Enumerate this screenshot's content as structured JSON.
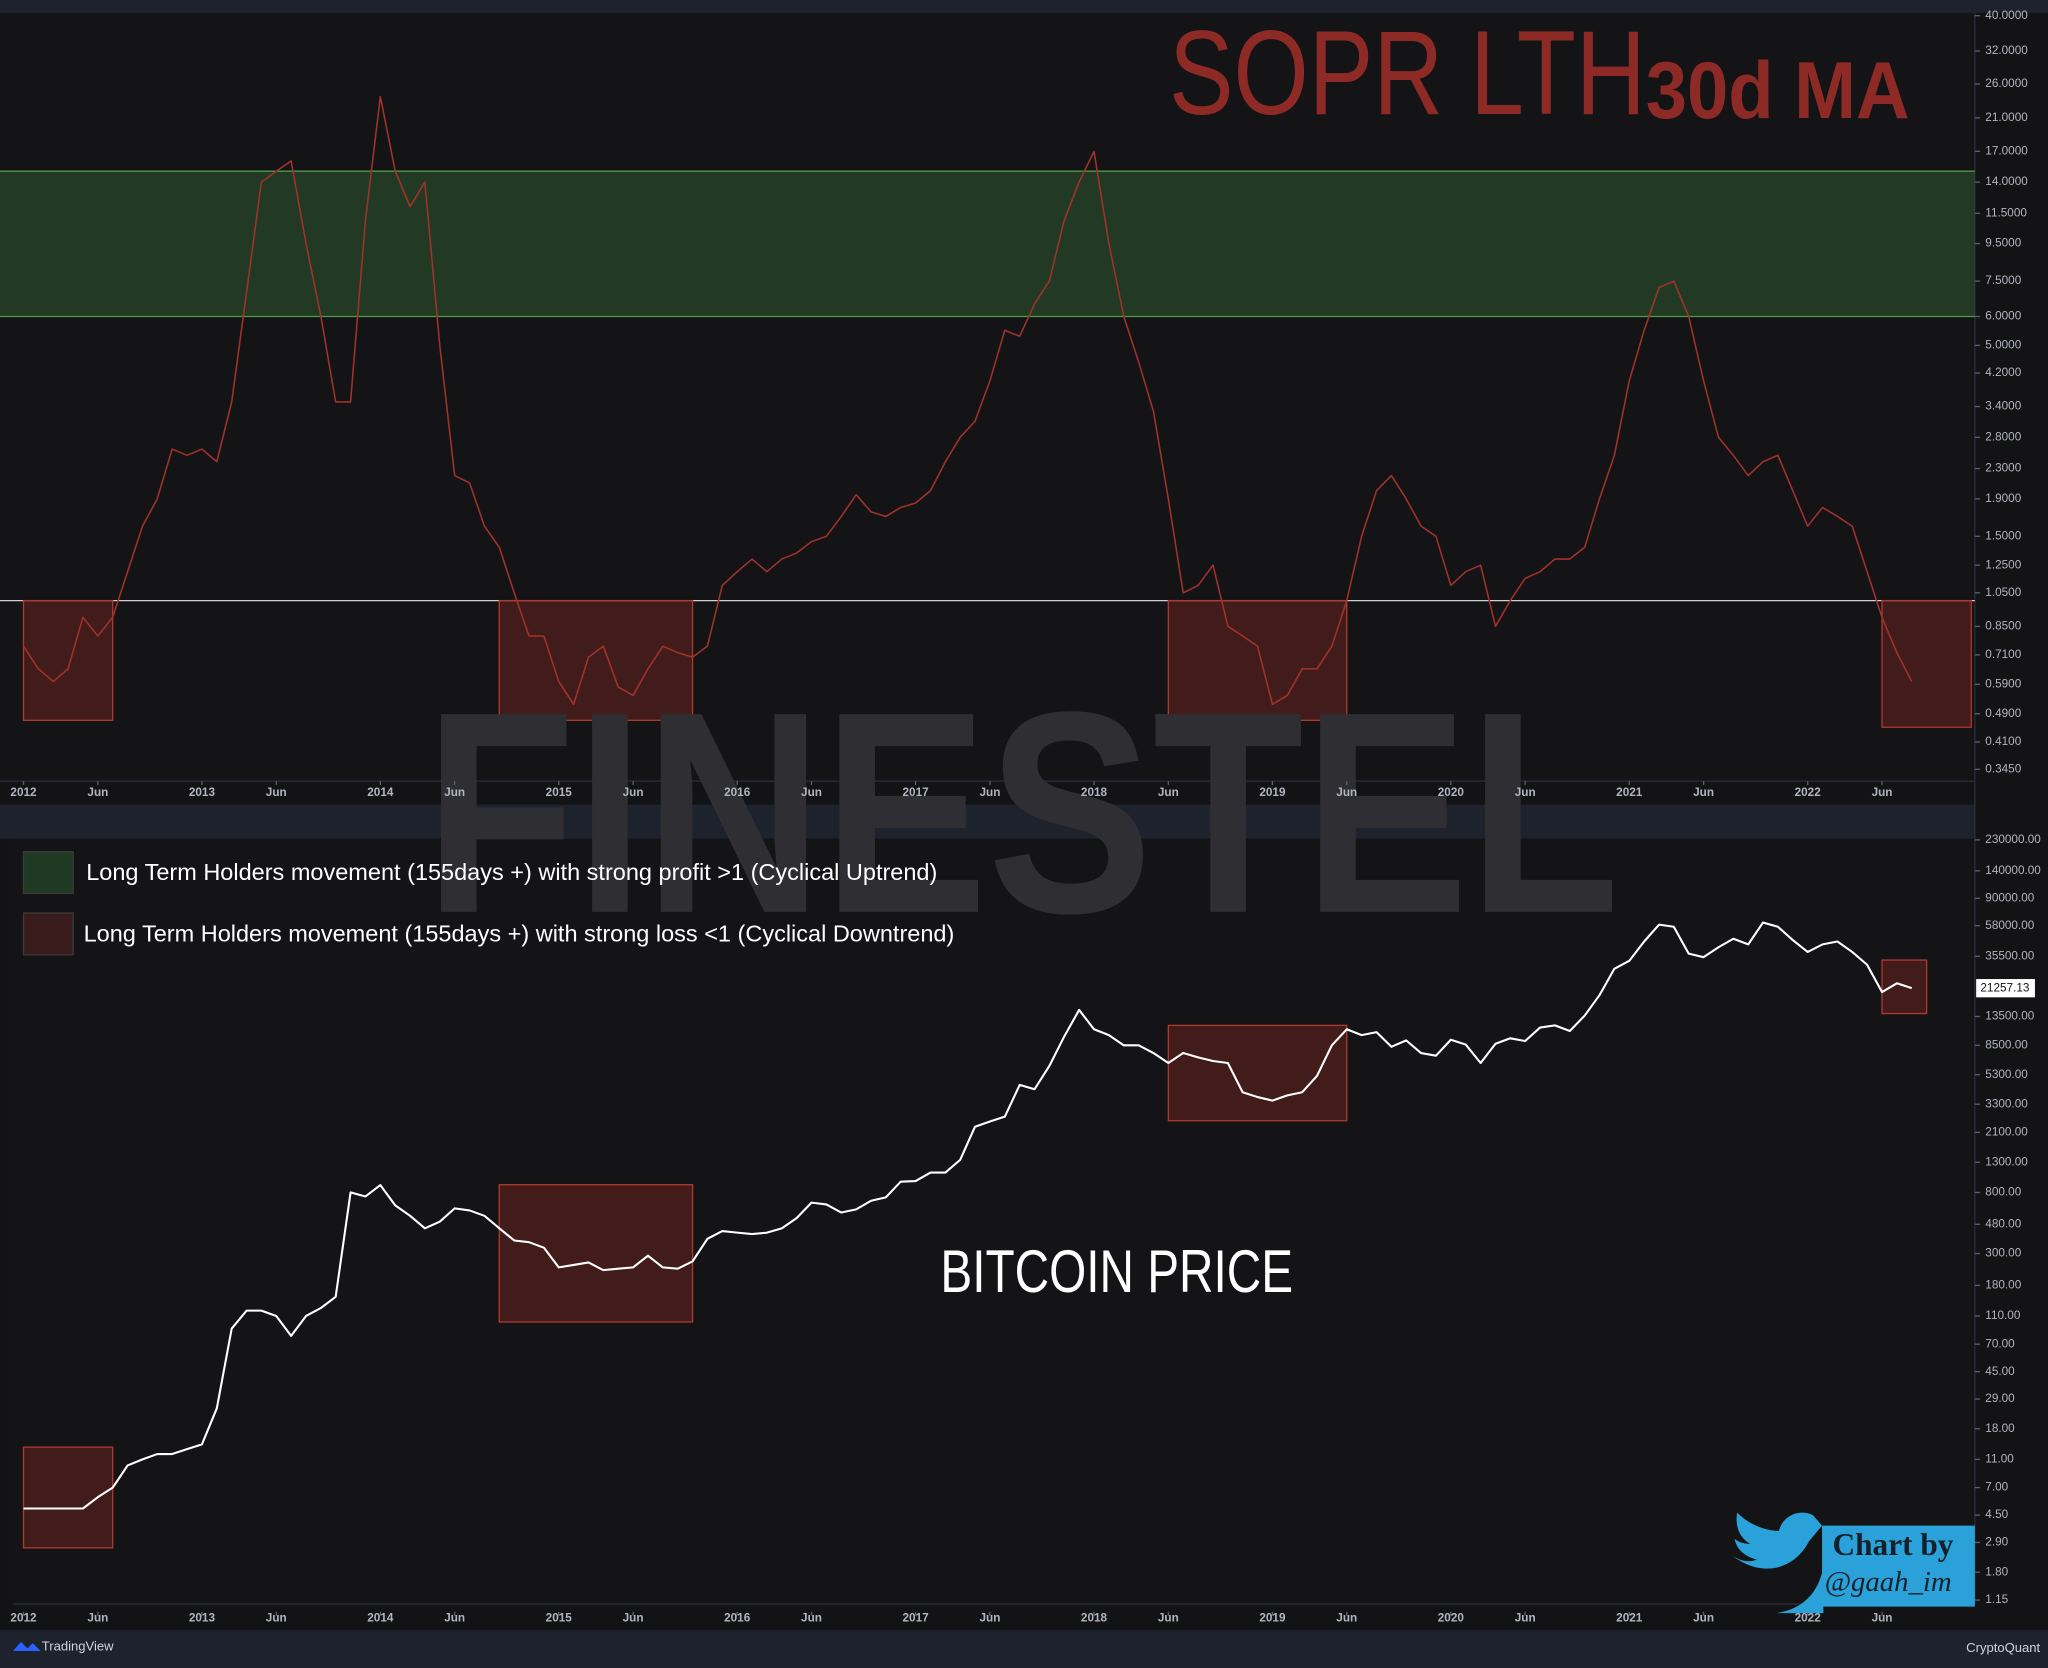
{
  "chart_data": [
    {
      "type": "line",
      "title": "SOPR LTH",
      "subtitle": "30d MA",
      "color": "#a0322a",
      "log": true,
      "x": [
        "2012-01",
        "2012-02",
        "2012-03",
        "2012-04",
        "2012-05",
        "2012-06",
        "2012-07",
        "2012-08",
        "2012-09",
        "2012-10",
        "2012-11",
        "2012-12",
        "2013-01",
        "2013-02",
        "2013-03",
        "2013-04",
        "2013-05",
        "2013-06",
        "2013-07",
        "2013-08",
        "2013-09",
        "2013-10",
        "2013-11",
        "2013-12",
        "2014-01",
        "2014-02",
        "2014-03",
        "2014-04",
        "2014-05",
        "2014-06",
        "2014-07",
        "2014-08",
        "2014-09",
        "2014-10",
        "2014-11",
        "2014-12",
        "2015-01",
        "2015-02",
        "2015-03",
        "2015-04",
        "2015-05",
        "2015-06",
        "2015-07",
        "2015-08",
        "2015-09",
        "2015-10",
        "2015-11",
        "2015-12",
        "2016-01",
        "2016-02",
        "2016-03",
        "2016-04",
        "2016-05",
        "2016-06",
        "2016-07",
        "2016-08",
        "2016-09",
        "2016-10",
        "2016-11",
        "2016-12",
        "2017-01",
        "2017-02",
        "2017-03",
        "2017-04",
        "2017-05",
        "2017-06",
        "2017-07",
        "2017-08",
        "2017-09",
        "2017-10",
        "2017-11",
        "2017-12",
        "2018-01",
        "2018-02",
        "2018-03",
        "2018-04",
        "2018-05",
        "2018-06",
        "2018-07",
        "2018-08",
        "2018-09",
        "2018-10",
        "2018-11",
        "2018-12",
        "2019-01",
        "2019-02",
        "2019-03",
        "2019-04",
        "2019-05",
        "2019-06",
        "2019-07",
        "2019-08",
        "2019-09",
        "2019-10",
        "2019-11",
        "2019-12",
        "2020-01",
        "2020-02",
        "2020-03",
        "2020-04",
        "2020-05",
        "2020-06",
        "2020-07",
        "2020-08",
        "2020-09",
        "2020-10",
        "2020-11",
        "2020-12",
        "2021-01",
        "2021-02",
        "2021-03",
        "2021-04",
        "2021-05",
        "2021-06",
        "2021-07",
        "2021-08",
        "2021-09",
        "2021-10",
        "2021-11",
        "2021-12",
        "2022-01",
        "2022-02",
        "2022-03",
        "2022-04",
        "2022-05",
        "2022-06",
        "2022-07",
        "2022-08"
      ],
      "values": [
        0.75,
        0.65,
        0.6,
        0.65,
        0.9,
        0.8,
        0.9,
        1.2,
        1.6,
        1.9,
        2.6,
        2.5,
        2.6,
        2.4,
        3.5,
        7,
        14,
        15,
        16,
        9.5,
        6,
        3.5,
        3.5,
        11,
        24,
        15,
        12,
        14,
        5,
        2.2,
        2.1,
        1.6,
        1.4,
        1.05,
        0.8,
        0.8,
        0.6,
        0.52,
        0.7,
        0.75,
        0.58,
        0.55,
        0.65,
        0.75,
        0.72,
        0.7,
        0.75,
        1.1,
        1.2,
        1.3,
        1.2,
        1.3,
        1.35,
        1.45,
        1.5,
        1.7,
        1.95,
        1.75,
        1.7,
        1.8,
        1.85,
        2.0,
        2.4,
        2.8,
        3.1,
        4.0,
        5.5,
        5.3,
        6.5,
        7.5,
        11,
        14,
        17,
        9.5,
        6,
        4.5,
        3.3,
        1.9,
        1.05,
        1.1,
        1.25,
        0.85,
        0.8,
        0.75,
        0.52,
        0.55,
        0.65,
        0.65,
        0.75,
        1.0,
        1.5,
        2.0,
        2.2,
        1.9,
        1.6,
        1.5,
        1.1,
        1.2,
        1.25,
        0.85,
        1.0,
        1.15,
        1.2,
        1.3,
        1.3,
        1.4,
        1.9,
        2.5,
        4.0,
        5.5,
        7.2,
        7.5,
        6,
        4,
        2.8,
        2.5,
        2.2,
        2.4,
        2.5,
        2.0,
        1.6,
        1.8,
        1.7,
        1.6,
        1.2,
        0.9,
        0.72,
        0.6
      ],
      "ylim": [
        0.345,
        40
      ],
      "yticks": [
        {
          "value": 0.345,
          "label": "0.3450"
        },
        {
          "value": 0.41,
          "label": "0.4100"
        },
        {
          "value": 0.49,
          "label": "0.4900"
        },
        {
          "value": 0.59,
          "label": "0.5900"
        },
        {
          "value": 0.71,
          "label": "0.7100"
        },
        {
          "value": 0.85,
          "label": "0.8500"
        },
        {
          "value": 1.05,
          "label": "1.0500"
        },
        {
          "value": 1.25,
          "label": "1.2500"
        },
        {
          "value": 1.5,
          "label": "1.5000"
        },
        {
          "value": 1.9,
          "label": "1.9000"
        },
        {
          "value": 2.3,
          "label": "2.3000"
        },
        {
          "value": 2.8,
          "label": "2.8000"
        },
        {
          "value": 3.4,
          "label": "3.4000"
        },
        {
          "value": 4.2,
          "label": "4.2000"
        },
        {
          "value": 5,
          "label": "5.0000"
        },
        {
          "value": 6,
          "label": "6.0000"
        },
        {
          "value": 7.5,
          "label": "7.5000"
        },
        {
          "value": 9.5,
          "label": "9.5000"
        },
        {
          "value": 11.5,
          "label": "11.5000"
        },
        {
          "value": 14,
          "label": "14.0000"
        },
        {
          "value": 17,
          "label": "17.0000"
        },
        {
          "value": 21,
          "label": "21.0000"
        },
        {
          "value": 26,
          "label": "26.0000"
        },
        {
          "value": 32,
          "label": "32.0000"
        },
        {
          "value": 40,
          "label": "40.0000"
        }
      ],
      "xticks": [
        {
          "value": "2012-01",
          "label": "2012"
        },
        {
          "value": "2012-06",
          "label": "Jun"
        },
        {
          "value": "2013-01",
          "label": "2013"
        },
        {
          "value": "2013-06",
          "label": "Jun"
        },
        {
          "value": "2014-01",
          "label": "2014"
        },
        {
          "value": "2014-06",
          "label": "Jun"
        },
        {
          "value": "2015-01",
          "label": "2015"
        },
        {
          "value": "2015-06",
          "label": "Jun"
        },
        {
          "value": "2016-01",
          "label": "2016"
        },
        {
          "value": "2016-06",
          "label": "Jun"
        },
        {
          "value": "2017-01",
          "label": "2017"
        },
        {
          "value": "2017-06",
          "label": "Jun"
        },
        {
          "value": "2018-01",
          "label": "2018"
        },
        {
          "value": "2018-06",
          "label": "Jun"
        },
        {
          "value": "2019-01",
          "label": "2019"
        },
        {
          "value": "2019-06",
          "label": "Jun"
        },
        {
          "value": "2020-01",
          "label": "2020"
        },
        {
          "value": "2020-06",
          "label": "Jun"
        },
        {
          "value": "2021-01",
          "label": "2021"
        },
        {
          "value": "2021-06",
          "label": "Jun"
        },
        {
          "value": "2022-01",
          "label": "2022"
        },
        {
          "value": "2022-06",
          "label": "Jun"
        }
      ],
      "band": {
        "y": [
          6,
          15
        ],
        "color": "#2d5a2d"
      },
      "reference_line": 1.0,
      "zones": [
        {
          "x": [
            "2012-01",
            "2012-07"
          ],
          "y": [
            0.47,
            1.0
          ]
        },
        {
          "x": [
            "2014-09",
            "2015-10"
          ],
          "y": [
            0.47,
            1.0
          ]
        },
        {
          "x": [
            "2018-06",
            "2019-06"
          ],
          "y": [
            0.47,
            1.0
          ]
        },
        {
          "x": [
            "2022-06",
            "2022-12"
          ],
          "y": [
            0.45,
            1.0
          ]
        }
      ]
    },
    {
      "type": "line",
      "title": "BITCOIN PRICE",
      "color": "#ffffff",
      "log": true,
      "x": [
        "2012-01",
        "2012-02",
        "2012-03",
        "2012-04",
        "2012-05",
        "2012-06",
        "2012-07",
        "2012-08",
        "2012-09",
        "2012-10",
        "2012-11",
        "2012-12",
        "2013-01",
        "2013-02",
        "2013-03",
        "2013-04",
        "2013-05",
        "2013-06",
        "2013-07",
        "2013-08",
        "2013-09",
        "2013-10",
        "2013-11",
        "2013-12",
        "2014-01",
        "2014-02",
        "2014-03",
        "2014-04",
        "2014-05",
        "2014-06",
        "2014-07",
        "2014-08",
        "2014-09",
        "2014-10",
        "2014-11",
        "2014-12",
        "2015-01",
        "2015-02",
        "2015-03",
        "2015-04",
        "2015-05",
        "2015-06",
        "2015-07",
        "2015-08",
        "2015-09",
        "2015-10",
        "2015-11",
        "2015-12",
        "2016-01",
        "2016-02",
        "2016-03",
        "2016-04",
        "2016-05",
        "2016-06",
        "2016-07",
        "2016-08",
        "2016-09",
        "2016-10",
        "2016-11",
        "2016-12",
        "2017-01",
        "2017-02",
        "2017-03",
        "2017-04",
        "2017-05",
        "2017-06",
        "2017-07",
        "2017-08",
        "2017-09",
        "2017-10",
        "2017-11",
        "2017-12",
        "2018-01",
        "2018-02",
        "2018-03",
        "2018-04",
        "2018-05",
        "2018-06",
        "2018-07",
        "2018-08",
        "2018-09",
        "2018-10",
        "2018-11",
        "2018-12",
        "2019-01",
        "2019-02",
        "2019-03",
        "2019-04",
        "2019-05",
        "2019-06",
        "2019-07",
        "2019-08",
        "2019-09",
        "2019-10",
        "2019-11",
        "2019-12",
        "2020-01",
        "2020-02",
        "2020-03",
        "2020-04",
        "2020-05",
        "2020-06",
        "2020-07",
        "2020-08",
        "2020-09",
        "2020-10",
        "2020-11",
        "2020-12",
        "2021-01",
        "2021-02",
        "2021-03",
        "2021-04",
        "2021-05",
        "2021-06",
        "2021-07",
        "2021-08",
        "2021-09",
        "2021-10",
        "2021-11",
        "2021-12",
        "2022-01",
        "2022-02",
        "2022-03",
        "2022-04",
        "2022-05",
        "2022-06",
        "2022-07",
        "2022-08"
      ],
      "values": [
        5,
        5,
        5,
        5,
        5,
        6,
        7,
        10,
        11,
        12,
        12,
        13,
        14,
        25,
        90,
        120,
        120,
        110,
        80,
        110,
        125,
        150,
        800,
        750,
        900,
        650,
        550,
        450,
        500,
        620,
        600,
        550,
        450,
        370,
        360,
        330,
        240,
        250,
        260,
        230,
        235,
        240,
        290,
        240,
        235,
        265,
        380,
        430,
        420,
        410,
        420,
        450,
        530,
        680,
        660,
        580,
        610,
        700,
        740,
        950,
        960,
        1100,
        1100,
        1350,
        2300,
        2500,
        2700,
        4500,
        4200,
        6100,
        9800,
        15000,
        11000,
        10000,
        8500,
        8500,
        7500,
        6400,
        7500,
        7000,
        6600,
        6400,
        4000,
        3700,
        3500,
        3800,
        4000,
        5200,
        8500,
        11000,
        10000,
        10500,
        8300,
        9200,
        7500,
        7200,
        9300,
        8600,
        6400,
        8700,
        9500,
        9100,
        11300,
        11700,
        10700,
        13700,
        19000,
        29000,
        33000,
        45000,
        59000,
        57000,
        37000,
        35000,
        41000,
        47000,
        43000,
        61000,
        57000,
        46000,
        38000,
        43000,
        45000,
        38000,
        31000,
        20000,
        23000,
        21257.13
      ],
      "price_tag": 21257.13,
      "ylim": [
        1.15,
        230000
      ],
      "yticks": [
        {
          "value": 1.15,
          "label": "1.15"
        },
        {
          "value": 1.8,
          "label": "1.80"
        },
        {
          "value": 2.9,
          "label": "2.90"
        },
        {
          "value": 4.5,
          "label": "4.50"
        },
        {
          "value": 7,
          "label": "7.00"
        },
        {
          "value": 11,
          "label": "11.00"
        },
        {
          "value": 18,
          "label": "18.00"
        },
        {
          "value": 29,
          "label": "29.00"
        },
        {
          "value": 45,
          "label": "45.00"
        },
        {
          "value": 70,
          "label": "70.00"
        },
        {
          "value": 110,
          "label": "110.00"
        },
        {
          "value": 180,
          "label": "180.00"
        },
        {
          "value": 300,
          "label": "300.00"
        },
        {
          "value": 480,
          "label": "480.00"
        },
        {
          "value": 800,
          "label": "800.00"
        },
        {
          "value": 1300,
          "label": "1300.00"
        },
        {
          "value": 2100,
          "label": "2100.00"
        },
        {
          "value": 3300,
          "label": "3300.00"
        },
        {
          "value": 5300,
          "label": "5300.00"
        },
        {
          "value": 8500,
          "label": "8500.00"
        },
        {
          "value": 13500,
          "label": "13500.00"
        },
        {
          "value": 35500,
          "label": "35500.00"
        },
        {
          "value": 58000,
          "label": "58000.00"
        },
        {
          "value": 90000,
          "label": "90000.00"
        },
        {
          "value": 140000,
          "label": "140000.00"
        },
        {
          "value": 230000,
          "label": "230000.00"
        }
      ],
      "xticks": [
        {
          "value": "2012-01",
          "label": "2012"
        },
        {
          "value": "2012-06",
          "label": "Jun"
        },
        {
          "value": "2013-01",
          "label": "2013"
        },
        {
          "value": "2013-06",
          "label": "Jun"
        },
        {
          "value": "2014-01",
          "label": "2014"
        },
        {
          "value": "2014-06",
          "label": "Jun"
        },
        {
          "value": "2015-01",
          "label": "2015"
        },
        {
          "value": "2015-06",
          "label": "Jun"
        },
        {
          "value": "2016-01",
          "label": "2016"
        },
        {
          "value": "2016-06",
          "label": "Jun"
        },
        {
          "value": "2017-01",
          "label": "2017"
        },
        {
          "value": "2017-06",
          "label": "Jun"
        },
        {
          "value": "2018-01",
          "label": "2018"
        },
        {
          "value": "2018-06",
          "label": "Jun"
        },
        {
          "value": "2019-01",
          "label": "2019"
        },
        {
          "value": "2019-06",
          "label": "Jun"
        },
        {
          "value": "2020-01",
          "label": "2020"
        },
        {
          "value": "2020-06",
          "label": "Jun"
        },
        {
          "value": "2021-01",
          "label": "2021"
        },
        {
          "value": "2021-06",
          "label": "Jun"
        },
        {
          "value": "2022-01",
          "label": "2022"
        },
        {
          "value": "2022-06",
          "label": "Jun"
        }
      ],
      "zones": [
        {
          "x": [
            "2012-01",
            "2012-07"
          ],
          "y": [
            2.66,
            13.4
          ]
        },
        {
          "x": [
            "2014-09",
            "2015-10"
          ],
          "y": [
            100,
            906
          ]
        },
        {
          "x": [
            "2018-06",
            "2019-06"
          ],
          "y": [
            2530,
            11700
          ]
        },
        {
          "x": [
            "2022-06",
            "2022-09"
          ],
          "y": [
            14150,
            33400
          ]
        }
      ],
      "legend": [
        {
          "label": "Long Term Holders movement (155days +) with strong profit >1 (Cyclical Uptrend)",
          "color": "#1f3a22"
        },
        {
          "label": "Long Term Holders movement (155days +) with strong loss <1 (Cyclical Downtrend)",
          "color": "#3a1c1c"
        }
      ]
    }
  ],
  "watermark": "FINESTEL",
  "credit": {
    "line1": "Chart by",
    "line2": "@gaah_im"
  },
  "footer": {
    "left": "TradingView",
    "right": "CryptoQuant"
  }
}
